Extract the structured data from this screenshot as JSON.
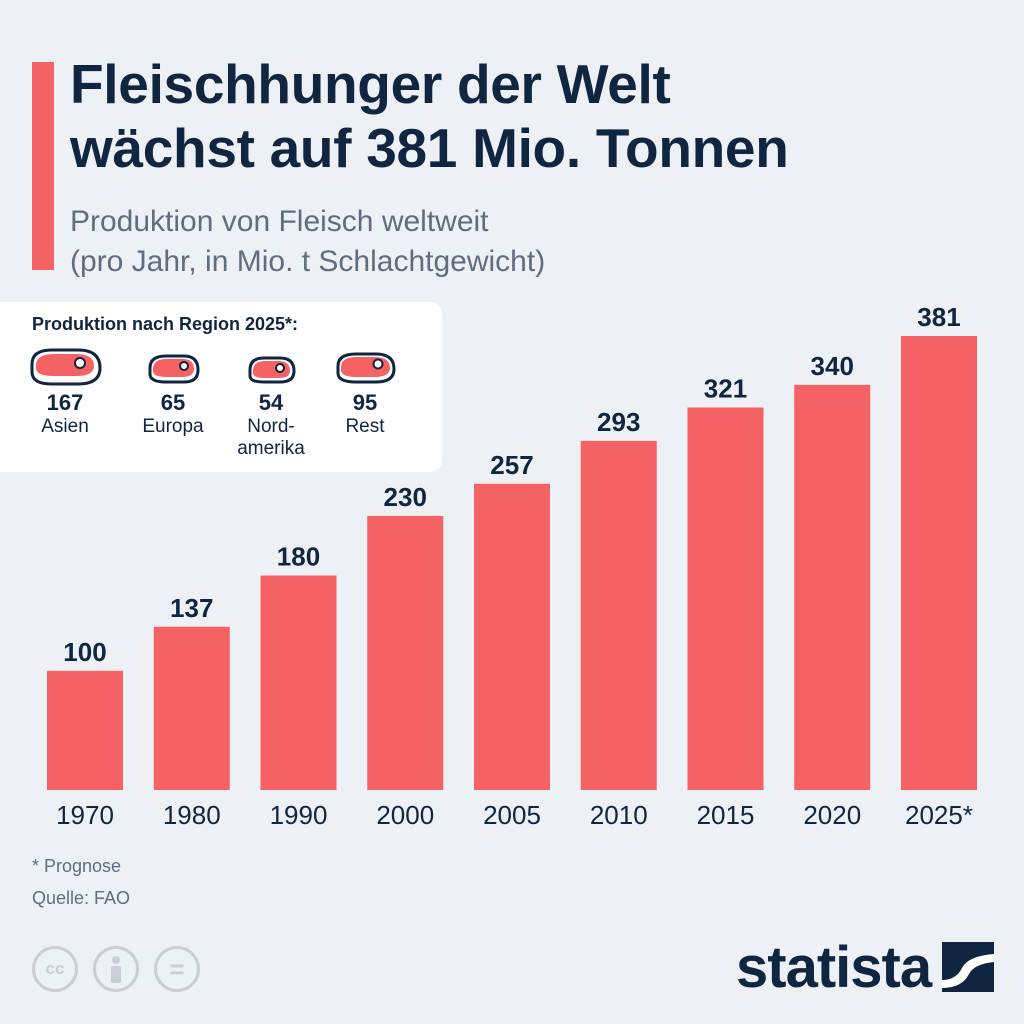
{
  "title_line1": "Fleischhunger der Welt",
  "title_line2": "wächst auf 381 Mio. Tonnen",
  "subtitle_line1": "Produktion von Fleisch weltweit",
  "subtitle_line2": "(pro Jahr, in Mio. t Schlachtgewicht)",
  "legend": {
    "title": "Produktion nach Region 2025*:",
    "items": [
      {
        "value": "167",
        "label": "Asien"
      },
      {
        "value": "65",
        "label": "Europa"
      },
      {
        "value": "54",
        "label": "Nord-\namerika"
      },
      {
        "value": "95",
        "label": "Rest"
      }
    ]
  },
  "footnote": "* Prognose",
  "source": "Quelle: FAO",
  "license_icons": [
    "cc-icon",
    "attribution-icon",
    "no-derivatives-icon"
  ],
  "license_labels": {
    "cc": "cc",
    "nd": "="
  },
  "brand": "statista",
  "colors": {
    "bar": "#f46264",
    "text": "#0f2540",
    "muted": "#5e6e80",
    "background": "#edf0f5"
  },
  "chart_data": {
    "type": "bar",
    "categories": [
      "1970",
      "1980",
      "1990",
      "2000",
      "2005",
      "2010",
      "2015",
      "2020",
      "2025*"
    ],
    "values": [
      100,
      137,
      180,
      230,
      257,
      293,
      321,
      340,
      381
    ],
    "title": "Fleischhunger der Welt wächst auf 381 Mio. Tonnen",
    "subtitle": "Produktion von Fleisch weltweit (pro Jahr, in Mio. t Schlachtgewicht)",
    "xlabel": "",
    "ylabel": "",
    "ylim": [
      0,
      381
    ],
    "grid": false
  }
}
